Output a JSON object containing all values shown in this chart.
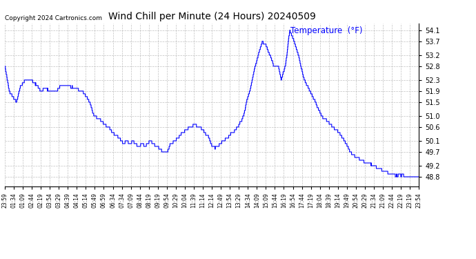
{
  "title": "Wind Chill per Minute (24 Hours) 20240509",
  "copyright_text": "Copyright 2024 Cartronics.com",
  "legend_label": "Temperature  (°F)",
  "legend_color": "#0000ff",
  "line_color": "#0000ff",
  "background_color": "#ffffff",
  "grid_color": "#b0b0b0",
  "ylim": [
    48.45,
    54.35
  ],
  "yticks": [
    48.8,
    49.2,
    49.7,
    50.1,
    50.6,
    51.0,
    51.5,
    51.9,
    52.3,
    52.8,
    53.2,
    53.7,
    54.1
  ],
  "xtick_labels": [
    "23:59",
    "01:34",
    "01:09",
    "02:44",
    "02:19",
    "03:54",
    "03:29",
    "04:39",
    "04:14",
    "05:14",
    "05:49",
    "06:59",
    "06:34",
    "07:34",
    "07:09",
    "08:44",
    "08:19",
    "09:19",
    "09:54",
    "10:29",
    "10:04",
    "11:39",
    "11:14",
    "12:14",
    "12:49",
    "13:54",
    "13:29",
    "14:34",
    "14:09",
    "15:09",
    "15:44",
    "16:19",
    "16:54",
    "17:44",
    "17:19",
    "18:04",
    "18:39",
    "19:14",
    "19:49",
    "20:54",
    "20:29",
    "21:34",
    "21:09",
    "22:44",
    "22:19",
    "23:19",
    "23:54"
  ],
  "control_points_x": [
    0,
    15,
    40,
    55,
    70,
    90,
    110,
    125,
    140,
    160,
    175,
    195,
    220,
    245,
    270,
    295,
    310,
    330,
    345,
    360,
    375,
    390,
    405,
    415,
    425,
    435,
    445,
    455,
    465,
    475,
    490,
    505,
    515,
    530,
    540,
    550,
    565,
    575,
    590,
    600,
    615,
    630,
    645,
    660,
    675,
    690,
    700,
    710,
    720,
    730,
    740,
    750,
    760,
    770,
    780,
    790,
    800,
    810,
    820,
    830,
    840,
    855,
    870,
    880,
    895,
    910,
    920,
    935,
    950,
    960,
    975,
    990,
    1005,
    1020,
    1040,
    1060,
    1080,
    1100,
    1120,
    1140,
    1160,
    1180,
    1200,
    1220,
    1240,
    1260,
    1280,
    1300,
    1320,
    1340,
    1360,
    1380,
    1400,
    1420,
    1439
  ],
  "control_points_y": [
    52.8,
    51.9,
    51.5,
    52.1,
    52.3,
    52.3,
    52.1,
    51.9,
    52.0,
    51.9,
    51.9,
    52.1,
    52.1,
    52.0,
    51.9,
    51.5,
    51.0,
    50.9,
    50.7,
    50.6,
    50.4,
    50.3,
    50.1,
    50.0,
    50.1,
    50.0,
    50.1,
    50.0,
    49.9,
    50.0,
    49.9,
    50.1,
    50.0,
    49.9,
    49.8,
    49.7,
    49.7,
    50.0,
    50.1,
    50.2,
    50.4,
    50.5,
    50.6,
    50.7,
    50.6,
    50.5,
    50.3,
    50.2,
    49.9,
    49.85,
    49.9,
    50.0,
    50.1,
    50.2,
    50.3,
    50.4,
    50.5,
    50.6,
    50.8,
    51.0,
    51.5,
    52.1,
    52.8,
    53.2,
    53.7,
    53.5,
    53.2,
    52.8,
    52.8,
    52.3,
    52.8,
    54.1,
    53.7,
    53.2,
    52.3,
    51.9,
    51.5,
    51.0,
    50.8,
    50.6,
    50.4,
    50.1,
    49.7,
    49.5,
    49.4,
    49.3,
    49.2,
    49.1,
    49.0,
    48.9,
    48.85,
    48.85,
    48.8,
    48.8,
    48.8
  ]
}
